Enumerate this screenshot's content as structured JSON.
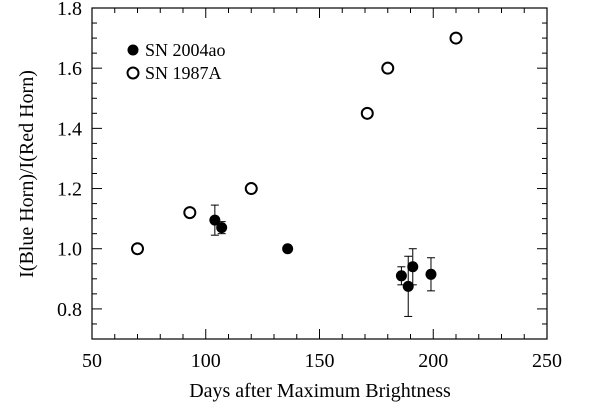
{
  "chart_data": {
    "type": "scatter",
    "title": "",
    "xlabel": "Days after Maximum Brightness",
    "ylabel": "I(Blue Horn)/I(Red Horn)",
    "xlim": [
      50,
      250
    ],
    "ylim": [
      0.7,
      1.8
    ],
    "x_ticks": [
      "50",
      "100",
      "150",
      "200",
      "250"
    ],
    "y_ticks": [
      "0.8",
      "1.0",
      "1.2",
      "1.4",
      "1.6",
      "1.8"
    ],
    "grid": false,
    "legend_position": "top-left",
    "series": [
      {
        "name": "SN 2004ao",
        "marker": "filled-circle",
        "color": "#000000",
        "points": [
          {
            "x": 104,
            "y": 1.095,
            "err": 0.05
          },
          {
            "x": 107,
            "y": 1.07,
            "err": 0.02
          },
          {
            "x": 136,
            "y": 1.0,
            "err": 0.0
          },
          {
            "x": 186,
            "y": 0.91,
            "err": 0.03
          },
          {
            "x": 189,
            "y": 0.875,
            "err": 0.1
          },
          {
            "x": 191,
            "y": 0.94,
            "err": 0.06
          },
          {
            "x": 199,
            "y": 0.915,
            "err": 0.055
          }
        ]
      },
      {
        "name": "SN 1987A",
        "marker": "open-circle",
        "color": "#000000",
        "points": [
          {
            "x": 70,
            "y": 1.0
          },
          {
            "x": 93,
            "y": 1.12
          },
          {
            "x": 120,
            "y": 1.2
          },
          {
            "x": 171,
            "y": 1.45
          },
          {
            "x": 180,
            "y": 1.6
          },
          {
            "x": 210,
            "y": 1.7
          }
        ]
      }
    ]
  }
}
